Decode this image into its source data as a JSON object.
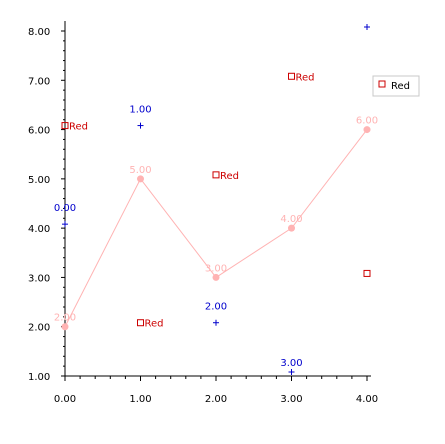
{
  "chart_data": {
    "type": "line",
    "grid": false,
    "legend_placement": "top-right",
    "xlim": [
      0,
      4
    ],
    "ylim": [
      1,
      8
    ],
    "x_ticks": [
      "0.00",
      "1.00",
      "2.00",
      "3.00",
      "4.00"
    ],
    "y_ticks": [
      "1.00",
      "2.00",
      "3.00",
      "4.00",
      "5.00",
      "6.00",
      "7.00",
      "8.00"
    ],
    "legend": [
      {
        "label": "Red",
        "marker": "square",
        "color": "#cc0000"
      }
    ],
    "line_series": {
      "color": "#ffb3b3",
      "points": [
        {
          "x": 0,
          "y": 2,
          "label": "2.00"
        },
        {
          "x": 1,
          "y": 5,
          "label": "5.00"
        },
        {
          "x": 2,
          "y": 3,
          "label": "3.00"
        },
        {
          "x": 3,
          "y": 4,
          "label": "4.00"
        },
        {
          "x": 4,
          "y": 6,
          "label": "6.00"
        }
      ]
    },
    "red_markers": {
      "color": "#cc0000",
      "points": [
        {
          "x": 0,
          "y": 6,
          "label": "Red"
        },
        {
          "x": 1,
          "y": 2,
          "label": "Red"
        },
        {
          "x": 2,
          "y": 5,
          "label": "Red"
        },
        {
          "x": 3,
          "y": 7,
          "label": "Red"
        },
        {
          "x": 4,
          "y": 3,
          "label": ""
        }
      ]
    },
    "blue_markers": {
      "color": "#0000cc",
      "points": [
        {
          "x": 0,
          "y": 4,
          "label": "0.00"
        },
        {
          "x": 1,
          "y": 6,
          "label": "1.00"
        },
        {
          "x": 2,
          "y": 2,
          "label": "2.00"
        },
        {
          "x": 3,
          "y": 1,
          "label": "3.00"
        },
        {
          "x": 4,
          "y": 8,
          "label": ""
        }
      ]
    }
  }
}
